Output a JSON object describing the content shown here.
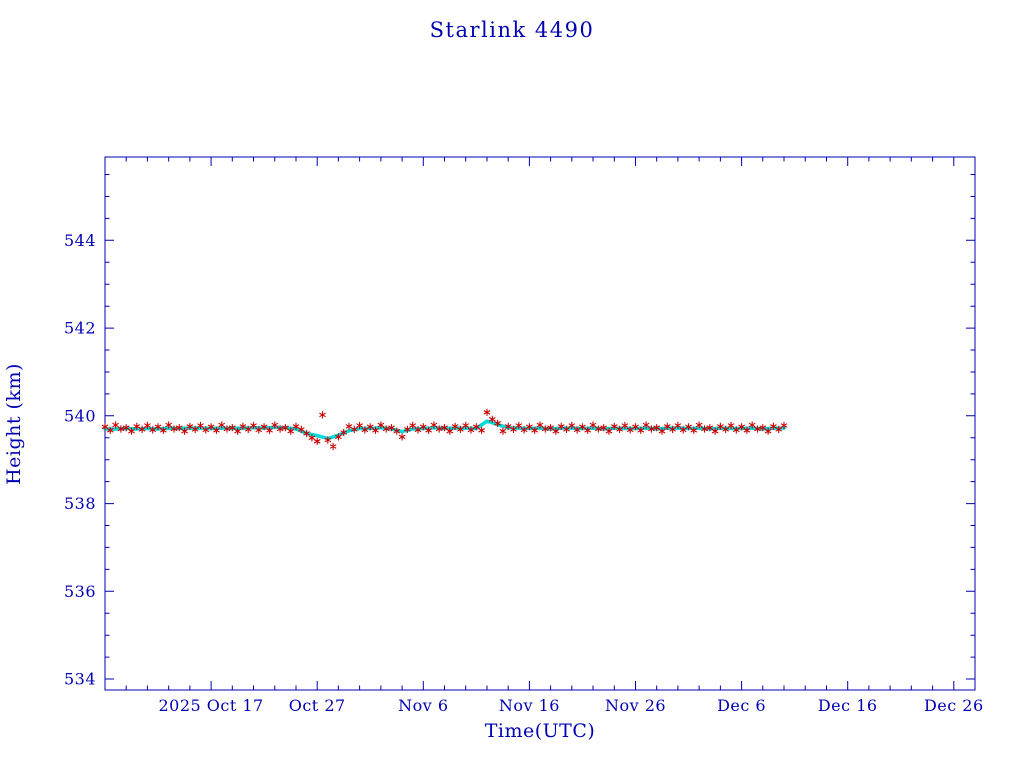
{
  "title": "Starlink 4490",
  "colors": {
    "background": "#ffffff",
    "axis": "#0000b4",
    "marker": "#cc0000",
    "smoothed_line": "#00dcdc"
  },
  "chart_data": {
    "type": "scatter",
    "title": "Starlink 4490",
    "xlabel": "Time(UTC)",
    "ylabel": "Height (km)",
    "x_unit": "days (0 = 2025 Oct 7, axis spans to 2025 Dec 28)",
    "xlim": [
      0,
      82
    ],
    "ylim": [
      533.75,
      545.9
    ],
    "grid": false,
    "legend": "none",
    "x_ticks": [
      {
        "day": 10,
        "label": "2025 Oct 17"
      },
      {
        "day": 20,
        "label": "Oct 27"
      },
      {
        "day": 30,
        "label": "Nov 6"
      },
      {
        "day": 40,
        "label": "Nov 16"
      },
      {
        "day": 50,
        "label": "Nov 26"
      },
      {
        "day": 60,
        "label": "Dec 6"
      },
      {
        "day": 70,
        "label": "Dec 16"
      },
      {
        "day": 80,
        "label": "Dec 26"
      }
    ],
    "x_minor_step": 2,
    "y_ticks": [
      534,
      536,
      538,
      540,
      542,
      544
    ],
    "y_minor_step": 0.5,
    "series": [
      {
        "name": "smoothed-height",
        "type": "line",
        "color": "#00dcdc",
        "stroke_width": 3.5,
        "points": [
          [
            0,
            539.7
          ],
          [
            1,
            539.7
          ],
          [
            2,
            539.71
          ],
          [
            3,
            539.7
          ],
          [
            4,
            539.71
          ],
          [
            5,
            539.7
          ],
          [
            6,
            539.72
          ],
          [
            7,
            539.71
          ],
          [
            8,
            539.72
          ],
          [
            9,
            539.72
          ],
          [
            10,
            539.71
          ],
          [
            11,
            539.72
          ],
          [
            12,
            539.71
          ],
          [
            13,
            539.72
          ],
          [
            14,
            539.73
          ],
          [
            15,
            539.72
          ],
          [
            16,
            539.74
          ],
          [
            17,
            539.73
          ],
          [
            18,
            539.7
          ],
          [
            19,
            539.6
          ],
          [
            20,
            539.55
          ],
          [
            21,
            539.48
          ],
          [
            22,
            539.56
          ],
          [
            23,
            539.66
          ],
          [
            24,
            539.71
          ],
          [
            25,
            539.71
          ],
          [
            26,
            539.73
          ],
          [
            27,
            539.7
          ],
          [
            28,
            539.64
          ],
          [
            29,
            539.7
          ],
          [
            30,
            539.71
          ],
          [
            31,
            539.73
          ],
          [
            32,
            539.71
          ],
          [
            33,
            539.72
          ],
          [
            34,
            539.72
          ],
          [
            35,
            539.71
          ],
          [
            36,
            539.88
          ],
          [
            37,
            539.8
          ],
          [
            38,
            539.73
          ],
          [
            39,
            539.72
          ],
          [
            40,
            539.71
          ],
          [
            41,
            539.72
          ],
          [
            42,
            539.7
          ],
          [
            43,
            539.72
          ],
          [
            44,
            539.72
          ],
          [
            45,
            539.71
          ],
          [
            46,
            539.72
          ],
          [
            47,
            539.7
          ],
          [
            48,
            539.72
          ],
          [
            49,
            539.71
          ],
          [
            50,
            539.71
          ],
          [
            51,
            539.72
          ],
          [
            52,
            539.7
          ],
          [
            53,
            539.72
          ],
          [
            54,
            539.72
          ],
          [
            55,
            539.71
          ],
          [
            56,
            539.72
          ],
          [
            57,
            539.7
          ],
          [
            58,
            539.72
          ],
          [
            59,
            539.71
          ],
          [
            60,
            539.71
          ],
          [
            61,
            539.72
          ],
          [
            62,
            539.7
          ],
          [
            63,
            539.72
          ],
          [
            64,
            539.72
          ]
        ]
      },
      {
        "name": "height-measurements",
        "type": "scatter",
        "marker": "asterisk",
        "color": "#cc0000",
        "points": [
          [
            0,
            539.75
          ],
          [
            0.5,
            539.67
          ],
          [
            1,
            539.79
          ],
          [
            1.5,
            539.7
          ],
          [
            2,
            539.73
          ],
          [
            2.5,
            539.65
          ],
          [
            3,
            539.76
          ],
          [
            3.5,
            539.69
          ],
          [
            4,
            539.78
          ],
          [
            4.5,
            539.68
          ],
          [
            5,
            539.75
          ],
          [
            5.5,
            539.67
          ],
          [
            6,
            539.79
          ],
          [
            6.5,
            539.7
          ],
          [
            7,
            539.73
          ],
          [
            7.5,
            539.65
          ],
          [
            8,
            539.76
          ],
          [
            8.5,
            539.69
          ],
          [
            9,
            539.78
          ],
          [
            9.5,
            539.68
          ],
          [
            10,
            539.75
          ],
          [
            10.5,
            539.67
          ],
          [
            11,
            539.79
          ],
          [
            11.5,
            539.7
          ],
          [
            12,
            539.73
          ],
          [
            12.5,
            539.65
          ],
          [
            13,
            539.76
          ],
          [
            13.5,
            539.69
          ],
          [
            14,
            539.78
          ],
          [
            14.5,
            539.68
          ],
          [
            15,
            539.75
          ],
          [
            15.5,
            539.67
          ],
          [
            16,
            539.79
          ],
          [
            16.5,
            539.7
          ],
          [
            17,
            539.73
          ],
          [
            17.5,
            539.65
          ],
          [
            18,
            539.76
          ],
          [
            18.5,
            539.69
          ],
          [
            19,
            539.6
          ],
          [
            19.5,
            539.5
          ],
          [
            20,
            539.42
          ],
          [
            20.5,
            540.02
          ],
          [
            21,
            539.45
          ],
          [
            21.5,
            539.3
          ],
          [
            22,
            539.52
          ],
          [
            22.5,
            539.62
          ],
          [
            23,
            539.76
          ],
          [
            23.5,
            539.69
          ],
          [
            24,
            539.78
          ],
          [
            24.5,
            539.68
          ],
          [
            25,
            539.75
          ],
          [
            25.5,
            539.67
          ],
          [
            26,
            539.79
          ],
          [
            26.5,
            539.7
          ],
          [
            27,
            539.73
          ],
          [
            27.5,
            539.65
          ],
          [
            28,
            539.52
          ],
          [
            28.5,
            539.69
          ],
          [
            29,
            539.78
          ],
          [
            29.5,
            539.68
          ],
          [
            30,
            539.75
          ],
          [
            30.5,
            539.67
          ],
          [
            31,
            539.79
          ],
          [
            31.5,
            539.7
          ],
          [
            32,
            539.73
          ],
          [
            32.5,
            539.65
          ],
          [
            33,
            539.76
          ],
          [
            33.5,
            539.69
          ],
          [
            34,
            539.78
          ],
          [
            34.5,
            539.68
          ],
          [
            35,
            539.75
          ],
          [
            35.5,
            539.67
          ],
          [
            36,
            540.08
          ],
          [
            36.5,
            539.92
          ],
          [
            37,
            539.83
          ],
          [
            37.5,
            539.65
          ],
          [
            38,
            539.76
          ],
          [
            38.5,
            539.69
          ],
          [
            39,
            539.78
          ],
          [
            39.5,
            539.68
          ],
          [
            40,
            539.75
          ],
          [
            40.5,
            539.67
          ],
          [
            41,
            539.79
          ],
          [
            41.5,
            539.7
          ],
          [
            42,
            539.73
          ],
          [
            42.5,
            539.65
          ],
          [
            43,
            539.76
          ],
          [
            43.5,
            539.69
          ],
          [
            44,
            539.78
          ],
          [
            44.5,
            539.68
          ],
          [
            45,
            539.75
          ],
          [
            45.5,
            539.67
          ],
          [
            46,
            539.79
          ],
          [
            46.5,
            539.7
          ],
          [
            47,
            539.73
          ],
          [
            47.5,
            539.65
          ],
          [
            48,
            539.76
          ],
          [
            48.5,
            539.69
          ],
          [
            49,
            539.78
          ],
          [
            49.5,
            539.68
          ],
          [
            50,
            539.75
          ],
          [
            50.5,
            539.67
          ],
          [
            51,
            539.79
          ],
          [
            51.5,
            539.7
          ],
          [
            52,
            539.73
          ],
          [
            52.5,
            539.65
          ],
          [
            53,
            539.76
          ],
          [
            53.5,
            539.69
          ],
          [
            54,
            539.78
          ],
          [
            54.5,
            539.68
          ],
          [
            55,
            539.75
          ],
          [
            55.5,
            539.67
          ],
          [
            56,
            539.79
          ],
          [
            56.5,
            539.7
          ],
          [
            57,
            539.73
          ],
          [
            57.5,
            539.65
          ],
          [
            58,
            539.76
          ],
          [
            58.5,
            539.69
          ],
          [
            59,
            539.78
          ],
          [
            59.5,
            539.68
          ],
          [
            60,
            539.75
          ],
          [
            60.5,
            539.67
          ],
          [
            61,
            539.79
          ],
          [
            61.5,
            539.7
          ],
          [
            62,
            539.73
          ],
          [
            62.5,
            539.65
          ],
          [
            63,
            539.76
          ],
          [
            63.5,
            539.69
          ],
          [
            64,
            539.78
          ]
        ]
      }
    ]
  }
}
